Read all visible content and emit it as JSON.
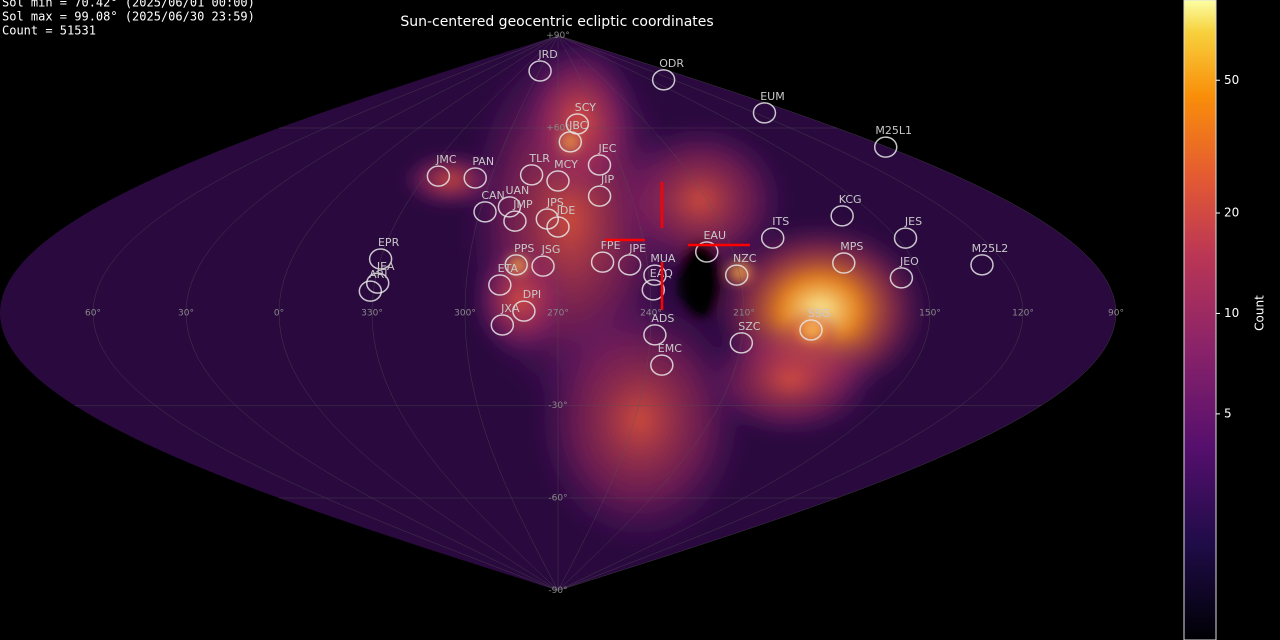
{
  "header": {
    "lines": [
      "Sol min =  70.42° (2025/06/01 00:00)",
      "Sol max =  99.08° (2025/06/30 23:59)",
      "Count = 51531"
    ]
  },
  "chart_data": {
    "type": "skymap",
    "title": "Sun-centered geocentric ecliptic coordinates",
    "projection": "sinusoidal",
    "center_lon": 270,
    "lon_ticks": [
      {
        "value": 60,
        "label": "60°"
      },
      {
        "value": 30,
        "label": "30°"
      },
      {
        "value": 0,
        "label": "0°"
      },
      {
        "value": 330,
        "label": "330°"
      },
      {
        "value": 300,
        "label": "300°"
      },
      {
        "value": 270,
        "label": "270°"
      },
      {
        "value": 240,
        "label": "240°"
      },
      {
        "value": 210,
        "label": "210°"
      },
      {
        "value": 150,
        "label": "150°"
      },
      {
        "value": 120,
        "label": "120°"
      },
      {
        "value": 90,
        "label": "90°"
      }
    ],
    "lat_ticks": [
      {
        "value": 90,
        "label": "+90°"
      },
      {
        "value": 60,
        "label": "+60°"
      },
      {
        "value": -30,
        "label": "-30°"
      },
      {
        "value": -60,
        "label": "-60°"
      },
      {
        "value": -90,
        "label": "-90°"
      }
    ],
    "showers": [
      {
        "name": "JRD",
        "lon": 299,
        "lat": 78.5
      },
      {
        "name": "ODR",
        "lon": 133,
        "lat": 75.6
      },
      {
        "name": "EUM",
        "lon": 113,
        "lat": 64.9
      },
      {
        "name": "M25L1",
        "lon": 91,
        "lat": 53.8
      },
      {
        "name": "SCY",
        "lon": 257,
        "lat": 61.3
      },
      {
        "name": "JBC",
        "lon": 263,
        "lat": 55.5
      },
      {
        "name": "JEC",
        "lon": 250,
        "lat": 48
      },
      {
        "name": "JMC",
        "lon": 324,
        "lat": 44.4
      },
      {
        "name": "PAN",
        "lon": 307,
        "lat": 43.8
      },
      {
        "name": "TLR",
        "lon": 282,
        "lat": 44.8
      },
      {
        "name": "MCY",
        "lon": 270,
        "lat": 42.8
      },
      {
        "name": "JIP",
        "lon": 253,
        "lat": 37.9
      },
      {
        "name": "UAN",
        "lon": 289,
        "lat": 34.4
      },
      {
        "name": "CAN",
        "lon": 298,
        "lat": 32.8
      },
      {
        "name": "JMP",
        "lon": 286,
        "lat": 29.8
      },
      {
        "name": "JPS",
        "lon": 274,
        "lat": 30.5
      },
      {
        "name": "JDE",
        "lon": 270,
        "lat": 27.9
      },
      {
        "name": "FPE",
        "lon": 255,
        "lat": 16.5
      },
      {
        "name": "JPE",
        "lon": 246,
        "lat": 15.6
      },
      {
        "name": "EAU",
        "lon": 219,
        "lat": 19.8
      },
      {
        "name": "ITS",
        "lon": 194,
        "lat": 24.3
      },
      {
        "name": "KCG",
        "lon": 162.5,
        "lat": 31.5
      },
      {
        "name": "JES",
        "lon": 147,
        "lat": 24.3
      },
      {
        "name": "MPS",
        "lon": 174,
        "lat": 16.2
      },
      {
        "name": "NZC",
        "lon": 211,
        "lat": 12.3
      },
      {
        "name": "JEO",
        "lon": 157,
        "lat": 11.4
      },
      {
        "name": "M25L2",
        "lon": 128,
        "lat": 15.6
      },
      {
        "name": "MUA",
        "lon": 238,
        "lat": 12.3
      },
      {
        "name": "EAQ",
        "lon": 239,
        "lat": 7.5
      },
      {
        "name": "EPR",
        "lon": 330,
        "lat": 17.5
      },
      {
        "name": "JEA",
        "lon": 329,
        "lat": 9.7
      },
      {
        "name": "ARI",
        "lon": 331,
        "lat": 7.1
      },
      {
        "name": "PPS",
        "lon": 284,
        "lat": 15.6
      },
      {
        "name": "JSG",
        "lon": 275,
        "lat": 15.2
      },
      {
        "name": "ETA",
        "lon": 289,
        "lat": 9.1
      },
      {
        "name": "DPI",
        "lon": 281,
        "lat": 0.6
      },
      {
        "name": "JXA",
        "lon": 288,
        "lat": -3.9
      },
      {
        "name": "SSG",
        "lon": 188,
        "lat": -5.5
      },
      {
        "name": "SZC",
        "lon": 210,
        "lat": -9.7
      },
      {
        "name": "ADS",
        "lon": 238.5,
        "lat": -7.1
      },
      {
        "name": "EMC",
        "lon": 235,
        "lat": -16.9
      }
    ],
    "colorbar": {
      "label": "Count",
      "scale": "log",
      "lim": [
        1.05,
        87
      ],
      "ticks": [
        5,
        10,
        20,
        50
      ]
    }
  }
}
